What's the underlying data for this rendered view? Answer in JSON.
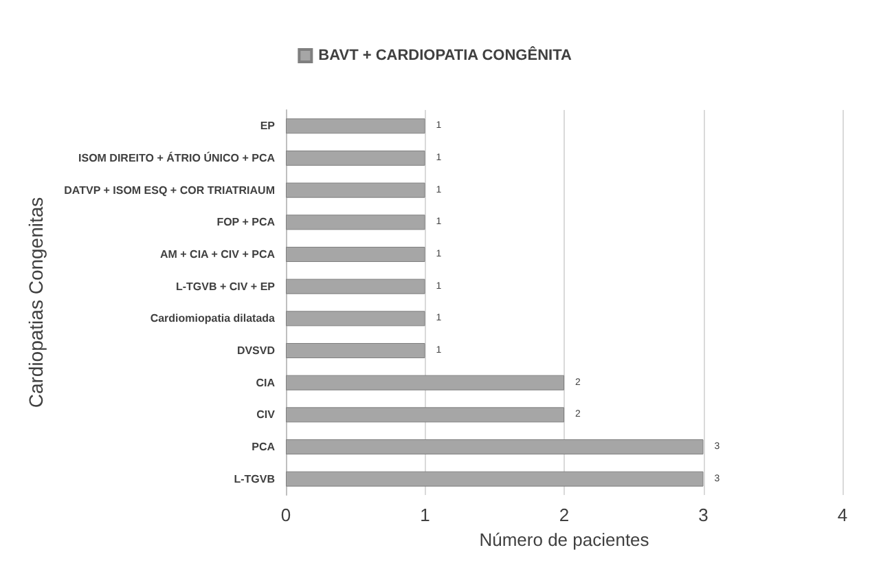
{
  "chart_data": {
    "type": "bar",
    "orientation": "horizontal",
    "xlabel": "Número de pacientes",
    "ylabel": "Cardiopatias Congenitas",
    "categories": [
      "EP",
      "ISOM DIREITO + ÁTRIO ÚNICO + PCA",
      "DATVP + ISOM ESQ + COR TRIATRIAUM",
      "FOP + PCA",
      "AM + CIA + CIV + PCA",
      "L-TGVB + CIV + EP",
      "Cardiomiopatia dilatada",
      "DVSVD",
      "CIA",
      "CIV",
      "PCA",
      "L-TGVB"
    ],
    "series": [
      {
        "name": "BAVT + CARDIOPATIA CONGÊNITA",
        "color": "#a6a6a6",
        "values": [
          1,
          1,
          1,
          1,
          1,
          1,
          1,
          1,
          2,
          2,
          3,
          3
        ]
      }
    ],
    "xlim": [
      0,
      4
    ],
    "xticks": [
      0,
      1,
      2,
      3,
      4
    ],
    "grid": "x",
    "legend": "top",
    "data_labels": true
  }
}
